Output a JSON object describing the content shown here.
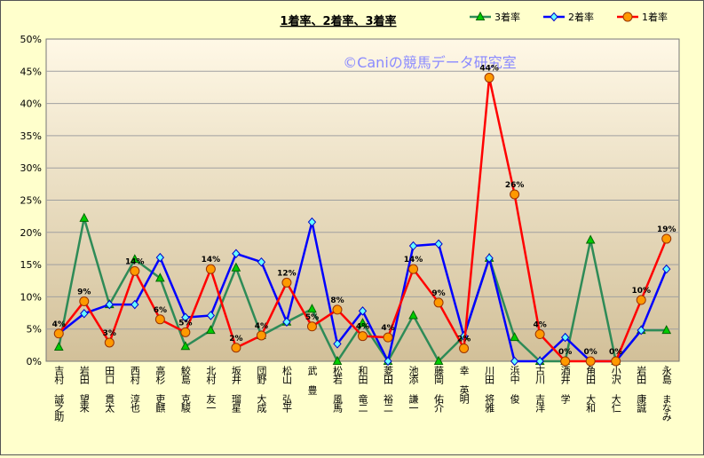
{
  "chart_data": {
    "type": "line",
    "title": "1着率、2着率、3着率",
    "watermark": "©Caniの競馬データ研究室",
    "xlabel": "",
    "ylabel": "",
    "ylim": [
      0,
      50
    ],
    "y_ticks": [
      "0%",
      "5%",
      "10%",
      "15%",
      "20%",
      "25%",
      "30%",
      "35%",
      "40%",
      "45%",
      "50%"
    ],
    "legend_position": "top-right",
    "grid": true,
    "categories": [
      "吉村 誠之助",
      "岩田 望来",
      "田口 貫太",
      "西村 淳也",
      "高杉 吏麒",
      "鮫島 克駿",
      "北村 友一",
      "坂井 瑠星",
      "団野 大成",
      "松山 弘平",
      "武 豊",
      "松若 風馬",
      "和田 竜二",
      "菱田 裕二",
      "池添 謙一",
      "藤岡 佑介",
      "幸 英明",
      "川田 将雅",
      "浜中 俊",
      "古川 吉洋",
      "酒井 学",
      "角田 大和",
      "小沢 大仁",
      "岩田 康誠",
      "永島 まなみ"
    ],
    "series": [
      {
        "name": "3着率",
        "color": "#2e8b57",
        "marker": "triangle",
        "marker_fill": "#00cc00",
        "values": [
          2.2,
          22.2,
          8.8,
          15.8,
          12.9,
          2.3,
          4.8,
          14.5,
          4.0,
          6.1,
          8.1,
          0,
          5.9,
          0,
          7.1,
          0,
          3.9,
          16.0,
          3.7,
          0,
          0,
          18.8,
          0,
          4.8,
          4.8
        ]
      },
      {
        "name": "2着率",
        "color": "#0000ff",
        "marker": "diamond",
        "marker_fill": "#66ffff",
        "values": [
          4.3,
          7.4,
          8.8,
          8.8,
          16.1,
          6.8,
          7.1,
          16.7,
          15.4,
          6.1,
          21.6,
          2.7,
          7.8,
          0,
          17.9,
          18.2,
          3.9,
          16.0,
          0,
          0,
          3.7,
          0,
          0,
          4.8,
          14.3
        ]
      },
      {
        "name": "1着率",
        "color": "#ff0000",
        "marker": "circle",
        "marker_fill": "#ff9900",
        "values": [
          4.3,
          9.3,
          2.9,
          14.0,
          6.5,
          4.5,
          14.3,
          2.1,
          4.0,
          12.2,
          5.4,
          8.0,
          3.9,
          3.7,
          14.3,
          9.1,
          2.0,
          44.0,
          25.9,
          4.2,
          0,
          0,
          0,
          9.5,
          19.0
        ]
      }
    ],
    "data_labels": [
      "4%",
      "9%",
      "3%",
      "14%",
      "6%",
      "5%",
      "14%",
      "2%",
      "4%",
      "12%",
      "5%",
      "8%",
      "4%",
      "4%",
      "14%",
      "9%",
      "2%",
      "44%",
      "26%",
      "4%",
      "0%",
      "0%",
      "0%",
      "10%",
      "19%"
    ]
  }
}
